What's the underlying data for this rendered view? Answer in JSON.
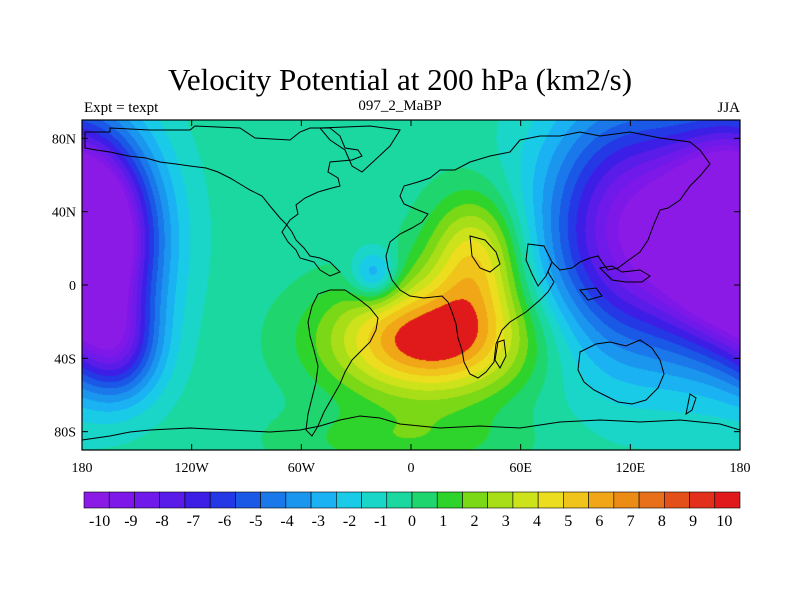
{
  "title": "Velocity Potential at 200 hPa (km2/s)",
  "left_label": "Expt = texpt",
  "center_label": "097_2_MaBP",
  "right_label": "JJA",
  "map": {
    "projection": "cylindrical-equidistant",
    "lon_range": [
      -180,
      180
    ],
    "lat_range": [
      -90,
      90
    ],
    "x_ticks": [
      "180",
      "120W",
      "60W",
      "0",
      "60E",
      "120E",
      "180"
    ],
    "y_ticks": [
      "80N",
      "40N",
      "0",
      "40S",
      "80S"
    ],
    "continent_outlines": "black"
  },
  "colorbar": {
    "levels": [
      "-10",
      "-9",
      "-8",
      "-7",
      "-6",
      "-5",
      "-4",
      "-3",
      "-2",
      "-1",
      "0",
      "1",
      "2",
      "3",
      "4",
      "5",
      "6",
      "7",
      "8",
      "9",
      "10"
    ],
    "colors": [
      "#8c1ae6",
      "#7e18e8",
      "#6f1aea",
      "#5a1ce8",
      "#3c1ee6",
      "#2438e6",
      "#1a58e6",
      "#1a78ea",
      "#1a96ee",
      "#1ab2f2",
      "#1acbe8",
      "#1ad6c8",
      "#1ad8a0",
      "#1fd66e",
      "#2ed42c",
      "#7ad816",
      "#a8de18",
      "#cce21a",
      "#ecde1e",
      "#f0c41a",
      "#f0a616",
      "#ec8c14",
      "#e8701a",
      "#e4501a",
      "#e2301a",
      "#e01a1a"
    ]
  },
  "chart_data": {
    "type": "heatmap",
    "title": "Velocity Potential at 200 hPa (km2/s)",
    "variable": "Velocity Potential at 200 hPa",
    "units": "km2/s",
    "xlabel": "",
    "ylabel": "",
    "xlim": [
      -180,
      180
    ],
    "ylim": [
      -90,
      90
    ],
    "contour_levels": [
      -10,
      -9,
      -8,
      -7,
      -6,
      -5,
      -4,
      -3,
      -2,
      -1,
      0,
      1,
      2,
      3,
      4,
      5,
      6,
      7,
      8,
      9,
      10
    ],
    "centers": [
      {
        "lon": 120,
        "lat": 30,
        "value": -10.5,
        "sx": 34,
        "sy": 48
      },
      {
        "lon": -180,
        "lat": 25,
        "value": -9.5,
        "sx": 26,
        "sy": 40
      },
      {
        "lon": 180,
        "lat": 25,
        "value": -9.5,
        "sx": 26,
        "sy": 40
      },
      {
        "lon": -160,
        "lat": -35,
        "value": -5.5,
        "sx": 16,
        "sy": 20
      },
      {
        "lon": 10,
        "lat": -30,
        "value": 10,
        "sx": 38,
        "sy": 22
      },
      {
        "lon": 35,
        "lat": 15,
        "value": 6.5,
        "sx": 18,
        "sy": 24
      },
      {
        "lon": -20,
        "lat": 5,
        "value": -4,
        "sx": 9,
        "sy": 10
      },
      {
        "lon": -5,
        "lat": -85,
        "value": 2.5,
        "sx": 45,
        "sy": 12
      }
    ],
    "background_value": 1.5
  }
}
